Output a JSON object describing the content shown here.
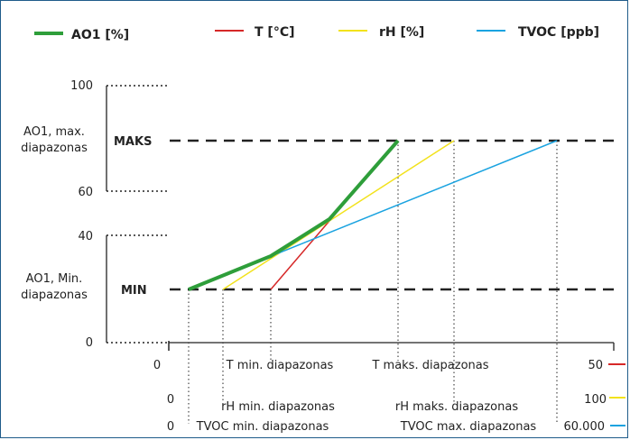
{
  "legend": [
    {
      "label": "AO1 [%]",
      "color": "#2e9e3a"
    },
    {
      "label": "T [°C]",
      "color": "#d62828"
    },
    {
      "label": "rH [%]",
      "color": "#f2e21c"
    },
    {
      "label": "TVOC [ppb]",
      "color": "#1aa3e0"
    }
  ],
  "y_axis": {
    "label_100": "100",
    "label_60": "60",
    "label_40": "40",
    "label_0": "0",
    "max_range_label": "AO1, max. diapazonas",
    "min_range_label": "AO1, Min. diapazonas",
    "maks": "MAKS",
    "min": "MIN"
  },
  "x_axis": {
    "origin_0": "0",
    "t_min": "T min. diapazonas",
    "t_max": "T maks. diapazonas",
    "t_end": "50",
    "rh_0": "0",
    "rh_min": "rH min. diapazonas",
    "rh_max": "rH maks. diapazonas",
    "rh_end": "100",
    "tvoc_0": "0",
    "tvoc_min": "TVOC min. diapazonas",
    "tvoc_max": "TVOC max. diapazonas",
    "tvoc_end": "60.000"
  }
}
